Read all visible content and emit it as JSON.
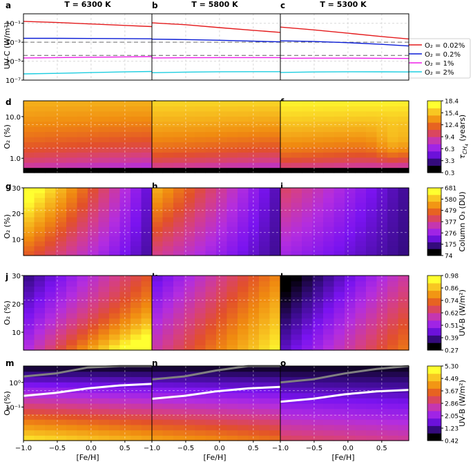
{
  "figure": {
    "column_titles": [
      "T = 6300 K",
      "T = 5800 K",
      "T = 5300 K"
    ],
    "fe_h_label": "[Fe/H]",
    "fe_h_ticks": [
      "−1.0",
      "−0.5",
      "0.0",
      "0.5"
    ],
    "colors": {
      "o2_0.02": "#e41a1c",
      "o2_0.2": "#0a1cd6",
      "o2_1": "#ee1fe8",
      "o2_2": "#1ccde0",
      "dashed": "#8a8a8a"
    }
  },
  "chart_data": [
    {
      "type": "line",
      "row": "UV-C",
      "panel_letters": [
        "a",
        "b",
        "c"
      ],
      "ylabel": "UV-C (W/m²)",
      "yscale": "log",
      "ylim": [
        1e-07,
        1
      ],
      "yticks": [
        "10⁻¹",
        "10⁻³",
        "10⁻⁵",
        "10⁻⁷"
      ],
      "xlim": [
        -1.0,
        0.9
      ],
      "x": [
        -1.0,
        -0.5,
        0.0,
        0.5,
        0.9
      ],
      "dashed_levels": [
        0.001,
        4e-05
      ],
      "legend": {
        "placement": "right",
        "entries": [
          "O₂ = 0.02%",
          "O₂ = 0.2%",
          "O₂ = 1%",
          "O₂ = 2%"
        ]
      },
      "panels": [
        {
          "series": [
            {
              "name": "O₂ = 0.02%",
              "values": [
                0.16,
                0.12,
                0.085,
                0.06,
                0.045
              ]
            },
            {
              "name": "O₂ = 0.2%",
              "values": [
                0.0026,
                0.0026,
                0.0025,
                0.0024,
                0.0023
              ]
            },
            {
              "name": "O₂ = 1%",
              "values": [
                2.2e-05,
                2.4e-05,
                2.6e-05,
                2.8e-05,
                3e-05
              ]
            },
            {
              "name": "O₂ = 2%",
              "values": [
                4.5e-07,
                5.2e-07,
                6.2e-07,
                7.4e-07,
                8.2e-07
              ]
            }
          ]
        },
        {
          "series": [
            {
              "name": "O₂ = 0.02%",
              "values": [
                0.11,
                0.07,
                0.035,
                0.018,
                0.011
              ]
            },
            {
              "name": "O₂ = 0.2%",
              "values": [
                0.0021,
                0.0019,
                0.0016,
                0.0013,
                0.0011
              ]
            },
            {
              "name": "O₂ = 1%",
              "values": [
                2.2e-05,
                2.3e-05,
                2.4e-05,
                2.4e-05,
                2.4e-05
              ]
            },
            {
              "name": "O₂ = 2%",
              "values": [
                6e-07,
                7e-07,
                7.6e-07,
                7.8e-07,
                7.8e-07
              ]
            }
          ]
        },
        {
          "series": [
            {
              "name": "O₂ = 0.02%",
              "values": [
                0.04,
                0.02,
                0.009,
                0.004,
                0.0022
              ]
            },
            {
              "name": "O₂ = 0.2%",
              "values": [
                0.0014,
                0.0012,
                0.0009,
                0.0006,
                0.0004
              ]
            },
            {
              "name": "O₂ = 1%",
              "values": [
                2e-05,
                2.1e-05,
                2.1e-05,
                2e-05,
                1.9e-05
              ]
            },
            {
              "name": "O₂ = 2%",
              "values": [
                6.5e-07,
                7.3e-07,
                7.6e-07,
                7.5e-07,
                7.3e-07
              ]
            }
          ]
        }
      ]
    },
    {
      "type": "heatmap",
      "row": "methane lifetime",
      "panel_letters": [
        "d",
        "e",
        "f"
      ],
      "ylabel": "O₂ (%)",
      "yscale": "log",
      "yticks": [
        "10.0",
        "1.0"
      ],
      "colorbar_label": "τ",
      "colorbar_sub": "CH",
      "colorbar_sub2": "4",
      "colorbar_suffix": "(years)",
      "colorbar_ticks": [
        "18.4",
        "15.4",
        "12.4",
        "9.4",
        "6.3",
        "3.3",
        "0.3"
      ],
      "black_band_fraction": 0.08
    },
    {
      "type": "heatmap",
      "row": "column ozone",
      "panel_letters": [
        "g",
        "h",
        "i"
      ],
      "ylabel": "O₂ (%)",
      "yscale": "linear",
      "ylim": [
        3,
        30
      ],
      "yticks": [
        "30",
        "20",
        "10"
      ],
      "colorbar_label": "Column O₃ (DU)",
      "colorbar_ticks": [
        "681",
        "580",
        "479",
        "377",
        "276",
        "175",
        "74"
      ]
    },
    {
      "type": "heatmap",
      "row": "UV-B high O2",
      "panel_letters": [
        "j",
        "k",
        "l"
      ],
      "ylabel": "O₂ (%)",
      "yscale": "linear",
      "ylim": [
        3,
        30
      ],
      "yticks": [
        "30",
        "20",
        "10"
      ],
      "colorbar_label": "UV-B (W/m²)",
      "colorbar_ticks": [
        "0.98",
        "0.86",
        "0.74",
        "0.62",
        "0.51",
        "0.39",
        "0.27"
      ]
    },
    {
      "type": "heatmap",
      "row": "UV-B low O2",
      "panel_letters": [
        "m",
        "n",
        "o"
      ],
      "ylabel": "O₂ (%)",
      "yscale": "log",
      "yticks": [
        "10⁰",
        "10⁻¹"
      ],
      "colorbar_label": "UV-B (W/m²)",
      "colorbar_ticks": [
        "5.30",
        "4.49",
        "3.67",
        "2.86",
        "2.05",
        "1.23",
        "0.42"
      ],
      "contours": [
        {
          "color": "#808080",
          "y_fraction": [
            0.14,
            0.1,
            0.02,
            -0.04,
            -0.08
          ]
        },
        {
          "color": "#ffffff",
          "y_fraction": [
            0.4,
            0.36,
            0.3,
            0.26,
            0.24
          ]
        }
      ]
    }
  ]
}
